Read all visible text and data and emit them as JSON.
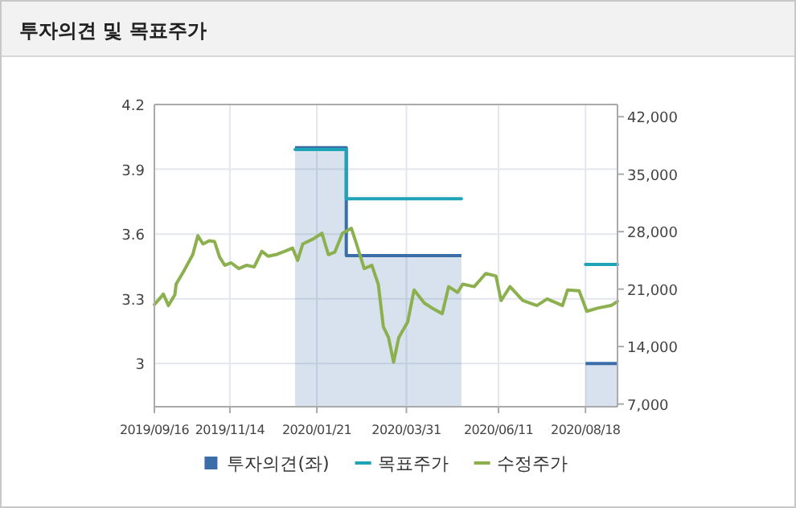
{
  "chart_data": {
    "type": "line",
    "title": "투자의견 및 목표주가",
    "xlim": [
      "2019-09-16",
      "2020-09-12"
    ],
    "xticks": [
      {
        "value": "2019-09-16",
        "label": "2019/09/16"
      },
      {
        "value": "2019-11-14",
        "label": "2019/11/14"
      },
      {
        "value": "2020-01-21",
        "label": "2020/01/21"
      },
      {
        "value": "2020-03-31",
        "label": "2020/03/31"
      },
      {
        "value": "2020-06-11",
        "label": "2020/06/11"
      },
      {
        "value": "2020-08-18",
        "label": "2020/08/18"
      }
    ],
    "ylim": [
      2.8,
      4.2
    ],
    "yticks": [
      3,
      3.3,
      3.6,
      3.9,
      4.2
    ],
    "y2lim": [
      6670,
      43490
    ],
    "y2ticks": [
      {
        "value": 7000,
        "label": "7,000"
      },
      {
        "value": 14000,
        "label": "14,000"
      },
      {
        "value": 21000,
        "label": "21,000"
      },
      {
        "value": 28000,
        "label": "28,000"
      },
      {
        "value": 35000,
        "label": "35,000"
      },
      {
        "value": 42000,
        "label": "42,000"
      }
    ],
    "grid": true,
    "legend": "bottom",
    "series": [
      {
        "name": "투자의견(좌)",
        "type": "area",
        "color": "#3b6ea8",
        "x": [
          "2020-01-04",
          "2020-02-13",
          "2020-02-13",
          "2020-05-13",
          "2020-05-14",
          "2020-08-18",
          "2020-09-12"
        ],
        "values": [
          4.0,
          4.0,
          3.5,
          3.5,
          null,
          3.0,
          3.0
        ]
      },
      {
        "name": "목표주가",
        "axis": "y2",
        "color": "#20a3b6",
        "x": [
          "2020-01-04",
          "2020-02-13",
          "2020-02-13",
          "2020-05-13",
          "2020-05-14",
          "2020-08-18",
          "2020-09-12"
        ],
        "values": [
          38000,
          38000,
          32000,
          32000,
          null,
          24000,
          24000
        ]
      },
      {
        "name": "수정주가",
        "axis": "y2",
        "color": "#8db04f",
        "x": [
          "2019-09-16",
          "2019-09-21",
          "2019-09-23",
          "2019-09-27",
          "2019-10-02",
          "2019-10-03",
          "2019-10-09",
          "2019-10-16",
          "2019-10-20",
          "2019-10-24",
          "2019-10-29",
          "2019-11-02",
          "2019-11-06",
          "2019-11-10",
          "2019-11-15",
          "2019-11-21",
          "2019-11-27",
          "2019-12-03",
          "2019-12-09",
          "2019-12-14",
          "2019-12-20",
          "2019-12-27",
          "2020-01-02",
          "2020-01-06",
          "2020-01-10",
          "2020-01-18",
          "2020-01-25",
          "2020-01-30",
          "2020-02-04",
          "2020-02-10",
          "2020-02-17",
          "2020-02-21",
          "2020-02-27",
          "2020-03-04",
          "2020-03-09",
          "2020-03-13",
          "2020-03-17",
          "2020-03-21",
          "2020-03-25",
          "2020-04-01",
          "2020-04-06",
          "2020-04-14",
          "2020-04-20",
          "2020-04-28",
          "2020-05-03",
          "2020-05-10",
          "2020-05-14",
          "2020-05-23",
          "2020-06-01",
          "2020-06-09",
          "2020-06-13",
          "2020-06-20",
          "2020-06-30",
          "2020-07-11",
          "2020-07-19",
          "2020-07-31",
          "2020-08-04",
          "2020-08-13",
          "2020-08-19",
          "2020-08-28",
          "2020-09-07",
          "2020-09-12"
        ],
        "values": [
          19100,
          20000,
          20400,
          19000,
          20300,
          21600,
          23200,
          25200,
          27500,
          26500,
          26900,
          26800,
          24900,
          23900,
          24200,
          23500,
          23900,
          23700,
          25600,
          25000,
          25200,
          25600,
          26000,
          24500,
          26500,
          27100,
          27800,
          25200,
          25500,
          27800,
          28400,
          26500,
          23500,
          23900,
          21600,
          16400,
          15100,
          12100,
          15100,
          17000,
          20900,
          19300,
          18700,
          18000,
          21300,
          20600,
          21600,
          21300,
          22900,
          22600,
          19600,
          21300,
          19600,
          19000,
          19800,
          19000,
          20900,
          20800,
          18300,
          18700,
          19000,
          19500
        ]
      }
    ]
  }
}
